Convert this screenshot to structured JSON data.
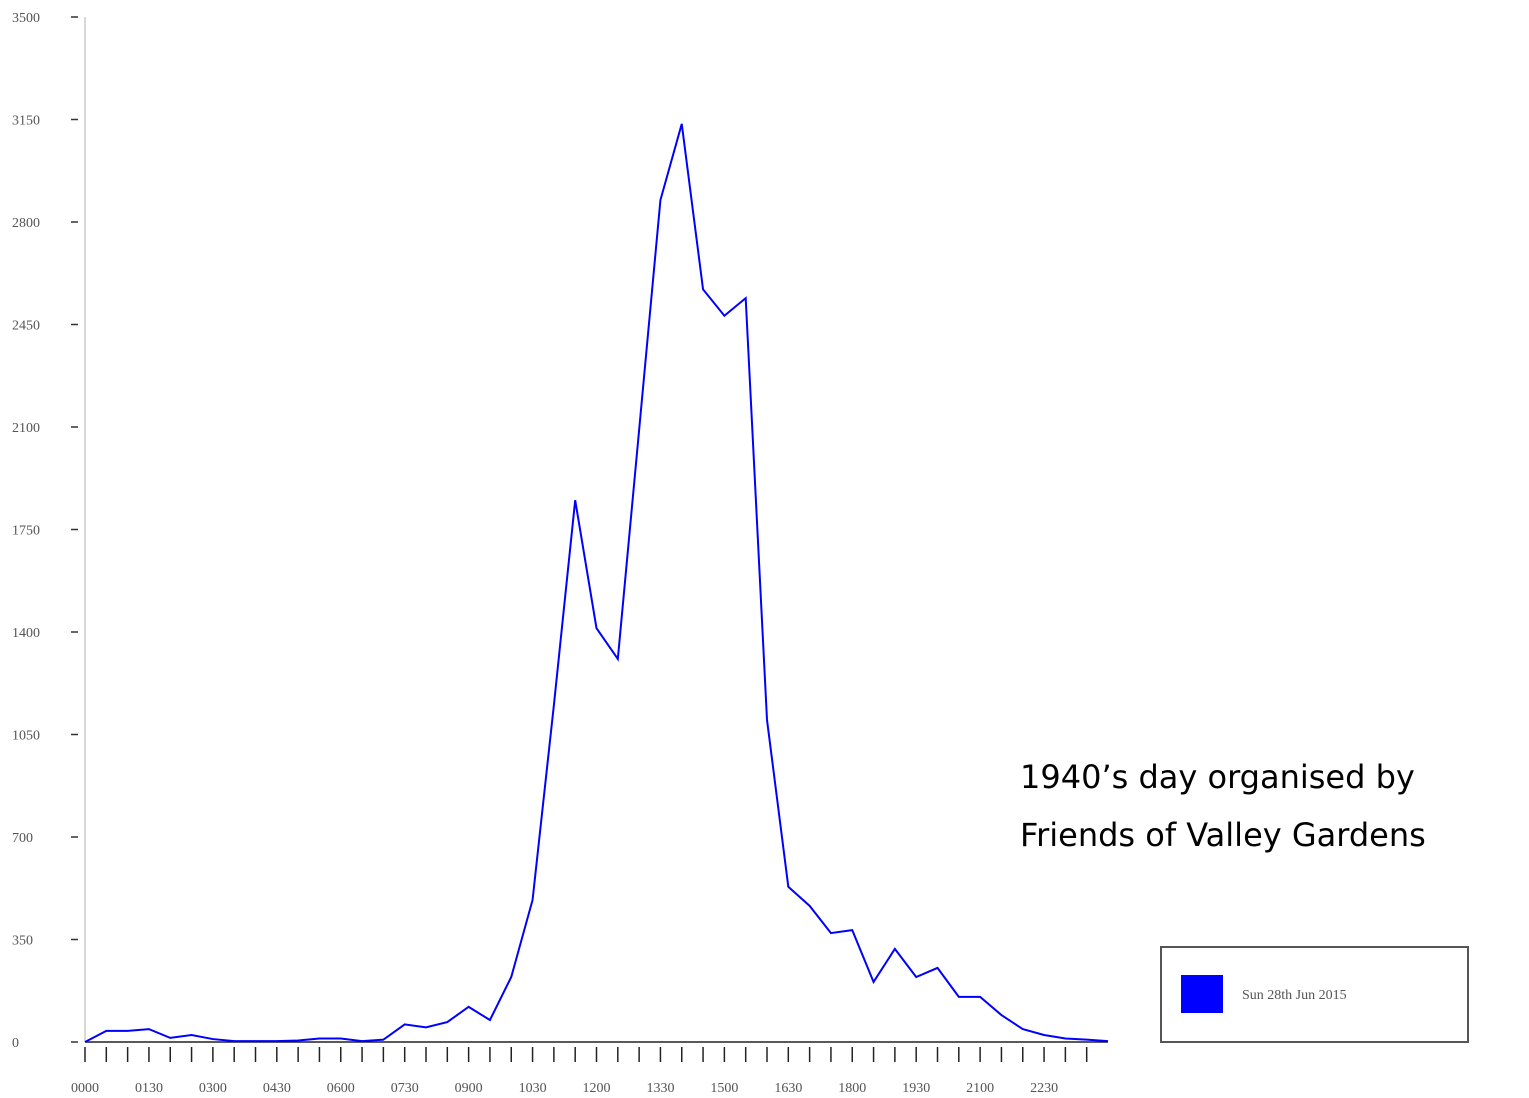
{
  "chart_data": {
    "type": "line",
    "categories": [
      "0000",
      null,
      null,
      "0130",
      null,
      null,
      "0300",
      null,
      null,
      "0430",
      null,
      null,
      "0600",
      null,
      null,
      "0730",
      null,
      null,
      "0900",
      null,
      null,
      "1030",
      null,
      null,
      "1200",
      null,
      null,
      "1330",
      null,
      null,
      "1500",
      null,
      null,
      "1630",
      null,
      null,
      "1800",
      null,
      null,
      "1930",
      null,
      null,
      "2100",
      null,
      null,
      "2230",
      null,
      null,
      null
    ],
    "series": [
      {
        "name": "Sun 28th Jun 2015",
        "color": "#0000ff",
        "values": [
          0,
          38,
          38,
          44,
          14,
          24,
          10,
          3,
          3,
          3,
          5,
          12,
          12,
          3,
          8,
          60,
          50,
          68,
          120,
          75,
          222,
          485,
          1150,
          1850,
          1413,
          1308,
          2090,
          2875,
          3135,
          2570,
          2480,
          2540,
          1100,
          530,
          465,
          372,
          382,
          205,
          318,
          222,
          253,
          154,
          154,
          92,
          44,
          24,
          12,
          8,
          3
        ]
      }
    ],
    "ylim": [
      0,
      3500
    ],
    "yticks": [
      0,
      350,
      700,
      1050,
      1400,
      1750,
      2100,
      2450,
      2800,
      3150,
      3500
    ],
    "annotation": [
      "1940’s day organised by",
      "Friends of Valley Gardens"
    ],
    "legend": "bottom-right"
  }
}
